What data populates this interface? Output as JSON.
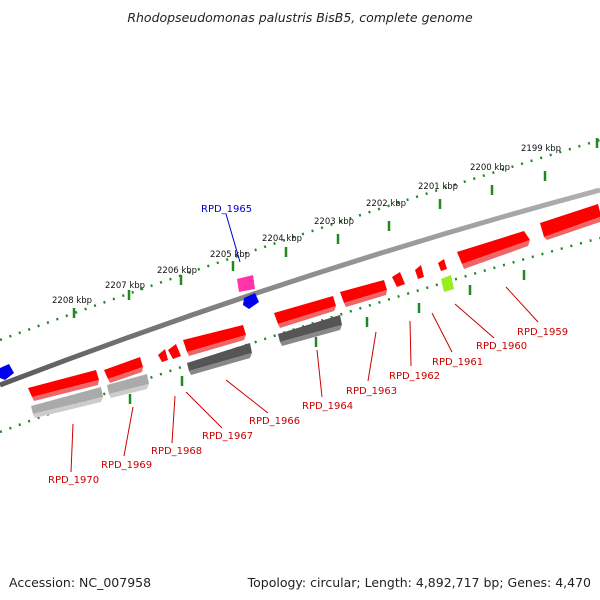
{
  "title": "Rhodopseudomonas palustris BisB5, complete genome",
  "accession": "Accession: NC_007958",
  "summary": "Topology: circular; Length: 4,892,717 bp; Genes: 4,470",
  "ruler_ticks": [
    "2199 kbp",
    "2200 kbp",
    "2201 kbp",
    "2202 kbp",
    "2203 kbp",
    "2204 kbp",
    "2205 kbp",
    "2206 kbp",
    "2207 kbp",
    "2208 kbp"
  ],
  "genes": [
    {
      "label": "RPD_1959",
      "color": "#cc0000"
    },
    {
      "label": "RPD_1960",
      "color": "#cc0000"
    },
    {
      "label": "RPD_1961",
      "color": "#cc0000"
    },
    {
      "label": "RPD_1962",
      "color": "#cc0000"
    },
    {
      "label": "RPD_1963",
      "color": "#cc0000"
    },
    {
      "label": "RPD_1964",
      "color": "#cc0000"
    },
    {
      "label": "RPD_1965",
      "color": "#0000cc"
    },
    {
      "label": "RPD_1966",
      "color": "#cc0000"
    },
    {
      "label": "RPD_1967",
      "color": "#cc0000"
    },
    {
      "label": "RPD_1968",
      "color": "#cc0000"
    },
    {
      "label": "RPD_1969",
      "color": "#cc0000"
    },
    {
      "label": "RPD_1970",
      "color": "#cc0000"
    }
  ],
  "colors": {
    "cds": "#ff0000",
    "cds_shadow": "#e33",
    "backbone": "#808080",
    "ruler": "#228822",
    "rna_pink": "#ff33aa",
    "feature_blue": "#0000ee",
    "feature_green": "#99ee22",
    "gray_dark": "#666666",
    "gray_light": "#bbbbbb"
  }
}
